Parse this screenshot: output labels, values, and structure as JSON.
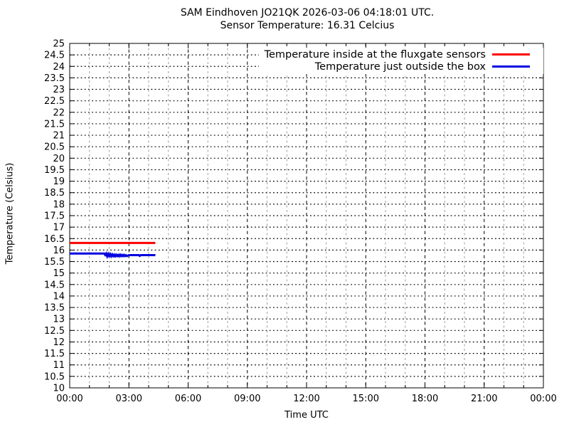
{
  "header": {
    "title_line1": "SAM Eindhoven JO21QK 2026-03-06 04:18:01 UTC.",
    "title_line2": "Sensor Temperature: 16.31 Celcius"
  },
  "chart_data": {
    "type": "line",
    "title": "SAM Eindhoven JO21QK 2026-03-06 04:18:01 UTC.",
    "subtitle": "Sensor Temperature: 16.31 Celcius",
    "xlabel": "Time UTC",
    "ylabel": "Temperature (Celsius)",
    "xlim_hours": [
      0,
      24
    ],
    "ylim": [
      10,
      25
    ],
    "grid": true,
    "legend_position": "top-right-inside",
    "colors": {
      "inside": "#ff0000",
      "outside": "#0000e0"
    },
    "x_major_ticks": [
      {
        "h": 0,
        "label": "00:00"
      },
      {
        "h": 3,
        "label": "03:00"
      },
      {
        "h": 6,
        "label": "06:00"
      },
      {
        "h": 9,
        "label": "09:00"
      },
      {
        "h": 12,
        "label": "12:00"
      },
      {
        "h": 15,
        "label": "15:00"
      },
      {
        "h": 18,
        "label": "18:00"
      },
      {
        "h": 21,
        "label": "21:00"
      },
      {
        "h": 24,
        "label": "00:00"
      }
    ],
    "x_minor_tick_hours": [
      1,
      2,
      4,
      5,
      7,
      8,
      10,
      11,
      13,
      14,
      16,
      17,
      19,
      20,
      22,
      23
    ],
    "y_ticks": [
      {
        "v": 10,
        "label": "10"
      },
      {
        "v": 10.5,
        "label": "10.5"
      },
      {
        "v": 11,
        "label": "11"
      },
      {
        "v": 11.5,
        "label": "11.5"
      },
      {
        "v": 12,
        "label": "12"
      },
      {
        "v": 12.5,
        "label": "12.5"
      },
      {
        "v": 13,
        "label": "13"
      },
      {
        "v": 13.5,
        "label": "13.5"
      },
      {
        "v": 14,
        "label": "14"
      },
      {
        "v": 14.5,
        "label": "14.5"
      },
      {
        "v": 15,
        "label": "15"
      },
      {
        "v": 15.5,
        "label": "15.5"
      },
      {
        "v": 16,
        "label": "16"
      },
      {
        "v": 16.5,
        "label": "16.5"
      },
      {
        "v": 17,
        "label": "17"
      },
      {
        "v": 17.5,
        "label": "17.5"
      },
      {
        "v": 18,
        "label": "18"
      },
      {
        "v": 18.5,
        "label": "18.5"
      },
      {
        "v": 19,
        "label": "19"
      },
      {
        "v": 19.5,
        "label": "19.5"
      },
      {
        "v": 20,
        "label": "20"
      },
      {
        "v": 20.5,
        "label": "20.5"
      },
      {
        "v": 21,
        "label": "21"
      },
      {
        "v": 21.5,
        "label": "21.5"
      },
      {
        "v": 22,
        "label": "22"
      },
      {
        "v": 22.5,
        "label": "22.5"
      },
      {
        "v": 23,
        "label": "23"
      },
      {
        "v": 23.5,
        "label": "23.5"
      },
      {
        "v": 24,
        "label": "24"
      },
      {
        "v": 24.5,
        "label": "24.5"
      },
      {
        "v": 25,
        "label": "25"
      }
    ],
    "series": [
      {
        "name": "Temperature inside at the fluxgate sensors",
        "color": "#ff0000",
        "points": [
          [
            0,
            16.31
          ],
          [
            4.34,
            16.31
          ]
        ]
      },
      {
        "name": "Temperature just outside the box",
        "color": "#0000e0",
        "points": [
          [
            0,
            15.85
          ],
          [
            1.75,
            15.85
          ],
          [
            1.8,
            15.79
          ],
          [
            1.85,
            15.85
          ],
          [
            1.9,
            15.73
          ],
          [
            1.95,
            15.83
          ],
          [
            2.0,
            15.74
          ],
          [
            2.05,
            15.82
          ],
          [
            2.1,
            15.73
          ],
          [
            2.15,
            15.81
          ],
          [
            2.2,
            15.74
          ],
          [
            2.25,
            15.8
          ],
          [
            2.3,
            15.73
          ],
          [
            2.35,
            15.8
          ],
          [
            2.4,
            15.74
          ],
          [
            2.45,
            15.79
          ],
          [
            2.5,
            15.73
          ],
          [
            2.55,
            15.8
          ],
          [
            2.6,
            15.74
          ],
          [
            2.65,
            15.79
          ],
          [
            2.7,
            15.74
          ],
          [
            2.75,
            15.79
          ],
          [
            2.8,
            15.74
          ],
          [
            2.85,
            15.78
          ],
          [
            2.9,
            15.74
          ],
          [
            3.0,
            15.78
          ],
          [
            3.5,
            15.78
          ],
          [
            3.55,
            15.75
          ],
          [
            3.6,
            15.78
          ],
          [
            4.34,
            15.78
          ]
        ]
      }
    ]
  }
}
